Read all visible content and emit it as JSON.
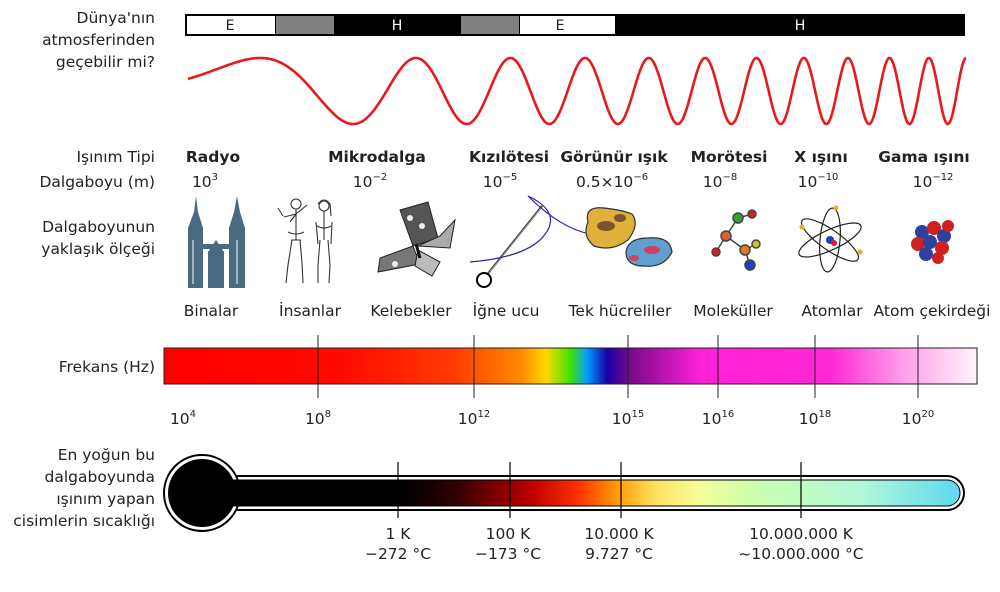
{
  "atmosphere": {
    "question_lines": [
      "Dünya'nın",
      "atmosferinden",
      "geçebilir mi?"
    ],
    "segments": [
      {
        "label": "E",
        "kind": "open"
      },
      {
        "label": "",
        "kind": "partial"
      },
      {
        "label": "H",
        "kind": "blocked"
      },
      {
        "label": "",
        "kind": "partial"
      },
      {
        "label": "E",
        "kind": "open"
      },
      {
        "label": "H",
        "kind": "blocked"
      }
    ]
  },
  "row_labels": {
    "radiation_type": "Işınım Tipi",
    "wavelength": "Dalgaboyu (m)",
    "scale_lines": [
      "Dalgaboyunun",
      "yaklaşık ölçeği"
    ],
    "frequency": "Frekans (Hz)",
    "temperature_lines": [
      "En yoğun bu",
      "dalgaboyunda",
      "ışınım yapan",
      "cisimlerin sıcaklığı"
    ]
  },
  "bands": [
    {
      "name": "Radyo",
      "wl_base": "10",
      "wl_exp": "3",
      "object": "Binalar",
      "icon": "building-icon"
    },
    {
      "name": "Mikrodalga",
      "wl_base": "10",
      "wl_exp": "−2",
      "object": "İnsanlar",
      "icon": "humans-icon"
    },
    {
      "name": "Kızılötesi",
      "wl_base": "10",
      "wl_exp": "−5",
      "object": "Kelebekler",
      "icon": "butterfly-icon"
    },
    {
      "name": "Görünür ışık",
      "wl_base": "0.5×10",
      "wl_exp": "−6",
      "object": "İğne ucu",
      "icon": "needle-icon"
    },
    {
      "name": "Morötesi",
      "wl_base": "10",
      "wl_exp": "−8",
      "object": "Tek hücreliler",
      "icon": "protozoa-icon"
    },
    {
      "name": "X ışını",
      "wl_base": "10",
      "wl_exp": "−10",
      "object": "Moleküller",
      "icon": "molecule-icon"
    },
    {
      "name": "Gama ışını",
      "wl_base": "10",
      "wl_exp": "−12",
      "object": "Atomlar",
      "icon": "atom-icon"
    }
  ],
  "extra_objects": [
    "Atom çekirdeği"
  ],
  "frequency_ticks": [
    {
      "base": "10",
      "exp": "4"
    },
    {
      "base": "10",
      "exp": "8"
    },
    {
      "base": "10",
      "exp": "12"
    },
    {
      "base": "10",
      "exp": "15"
    },
    {
      "base": "10",
      "exp": "16"
    },
    {
      "base": "10",
      "exp": "18"
    },
    {
      "base": "10",
      "exp": "20"
    }
  ],
  "temperature_ticks": [
    {
      "kelvin": "1 K",
      "celsius": "−272 °C"
    },
    {
      "kelvin": "100 K",
      "celsius": "−173 °C"
    },
    {
      "kelvin": "10.000 K",
      "celsius": "9.727 °C"
    },
    {
      "kelvin": "10.000.000 K",
      "celsius": "~10.000.000 °C"
    }
  ],
  "colors": {
    "wave": "#e8191b",
    "building": "#4a6a82",
    "protozoa": "#e0b13a",
    "thermometer_end": "#5fd8f0"
  }
}
